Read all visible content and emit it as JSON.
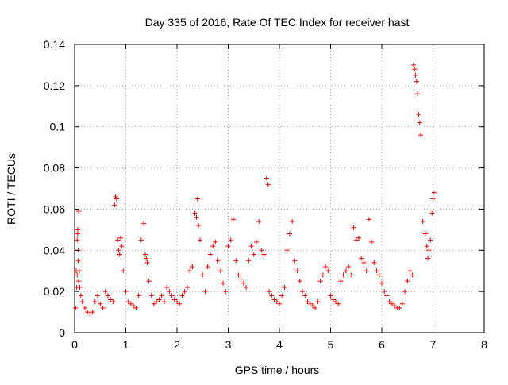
{
  "chart_data": {
    "type": "scatter",
    "title": "Day 335 of 2016, Rate Of TEC Index for receiver hast",
    "xlabel": "GPS time / hours",
    "ylabel": "ROTI / TECUs",
    "xlim": [
      0,
      8
    ],
    "ylim": [
      0,
      0.14
    ],
    "xticks": [
      0,
      1,
      2,
      3,
      4,
      5,
      6,
      7,
      8
    ],
    "yticks": [
      0,
      0.02,
      0.04,
      0.06,
      0.08,
      0.1,
      0.12,
      0.14
    ],
    "xtick_labels": [
      "0",
      "1",
      "2",
      "3",
      "4",
      "5",
      "6",
      "7",
      "8"
    ],
    "ytick_labels": [
      "0",
      "0.02",
      "0.04",
      "0.06",
      "0.08",
      "0.1",
      "0.12",
      "0.14"
    ],
    "grid": true,
    "marker": "plus",
    "color": "#ff0000",
    "series": [
      {
        "name": "ROTI",
        "x": [
          0.02,
          0.03,
          0.05,
          0.06,
          0.07,
          0.08,
          0.09,
          0.1,
          0.12,
          0.15,
          0.2,
          0.25,
          0.3,
          0.06,
          0.07,
          0.08,
          0.05,
          0.04,
          0.35,
          0.4,
          0.45,
          0.5,
          0.55,
          0.6,
          0.65,
          0.7,
          0.75,
          0.78,
          0.8,
          0.82,
          0.84,
          0.86,
          0.88,
          0.9,
          0.92,
          0.95,
          1.0,
          1.05,
          1.1,
          1.15,
          1.2,
          1.25,
          1.3,
          1.35,
          1.38,
          1.4,
          1.42,
          1.45,
          1.5,
          1.55,
          1.6,
          1.65,
          1.7,
          1.75,
          1.8,
          1.85,
          1.9,
          1.95,
          2.0,
          2.05,
          2.1,
          2.15,
          2.2,
          2.25,
          2.3,
          2.35,
          2.38,
          2.4,
          2.42,
          2.45,
          2.5,
          2.55,
          2.6,
          2.65,
          2.7,
          2.75,
          2.8,
          2.85,
          2.9,
          2.95,
          3.0,
          3.05,
          3.1,
          3.15,
          3.2,
          3.25,
          3.3,
          3.35,
          3.4,
          3.45,
          3.5,
          3.55,
          3.6,
          3.65,
          3.7,
          3.75,
          3.78,
          3.8,
          3.85,
          3.9,
          3.95,
          4.0,
          4.05,
          4.1,
          4.15,
          4.2,
          4.25,
          4.3,
          4.35,
          4.4,
          4.45,
          4.5,
          4.55,
          4.6,
          4.65,
          4.7,
          4.75,
          4.8,
          4.85,
          4.9,
          4.95,
          5.0,
          5.05,
          5.1,
          5.15,
          5.2,
          5.25,
          5.3,
          5.35,
          5.4,
          5.45,
          5.5,
          5.55,
          5.6,
          5.65,
          5.7,
          5.75,
          5.8,
          5.85,
          5.9,
          5.95,
          6.0,
          6.05,
          6.1,
          6.15,
          6.2,
          6.25,
          6.3,
          6.35,
          6.4,
          6.45,
          6.5,
          6.55,
          6.6,
          6.62,
          6.64,
          6.66,
          6.68,
          6.7,
          6.72,
          6.74,
          6.76,
          6.8,
          6.85,
          6.88,
          6.9,
          6.92,
          6.95,
          6.98,
          7.0,
          7.02
        ],
        "y": [
          0.012,
          0.03,
          0.045,
          0.05,
          0.04,
          0.059,
          0.03,
          0.022,
          0.018,
          0.015,
          0.012,
          0.01,
          0.009,
          0.048,
          0.035,
          0.025,
          0.028,
          0.022,
          0.01,
          0.015,
          0.018,
          0.014,
          0.012,
          0.02,
          0.018,
          0.016,
          0.015,
          0.062,
          0.066,
          0.065,
          0.045,
          0.04,
          0.038,
          0.046,
          0.042,
          0.03,
          0.02,
          0.015,
          0.014,
          0.013,
          0.012,
          0.018,
          0.045,
          0.053,
          0.038,
          0.036,
          0.034,
          0.025,
          0.018,
          0.014,
          0.015,
          0.016,
          0.018,
          0.015,
          0.022,
          0.02,
          0.018,
          0.016,
          0.015,
          0.014,
          0.018,
          0.02,
          0.022,
          0.03,
          0.032,
          0.058,
          0.056,
          0.065,
          0.052,
          0.045,
          0.028,
          0.02,
          0.032,
          0.038,
          0.042,
          0.044,
          0.035,
          0.03,
          0.024,
          0.02,
          0.042,
          0.045,
          0.055,
          0.035,
          0.028,
          0.026,
          0.024,
          0.022,
          0.035,
          0.042,
          0.038,
          0.044,
          0.054,
          0.04,
          0.038,
          0.075,
          0.072,
          0.02,
          0.018,
          0.016,
          0.015,
          0.014,
          0.018,
          0.022,
          0.04,
          0.048,
          0.054,
          0.035,
          0.03,
          0.025,
          0.02,
          0.018,
          0.015,
          0.014,
          0.013,
          0.012,
          0.015,
          0.025,
          0.028,
          0.032,
          0.03,
          0.018,
          0.016,
          0.015,
          0.014,
          0.025,
          0.028,
          0.03,
          0.032,
          0.028,
          0.051,
          0.045,
          0.046,
          0.036,
          0.034,
          0.03,
          0.055,
          0.044,
          0.034,
          0.03,
          0.028,
          0.024,
          0.02,
          0.018,
          0.015,
          0.014,
          0.013,
          0.012,
          0.012,
          0.014,
          0.02,
          0.025,
          0.03,
          0.028,
          0.13,
          0.128,
          0.125,
          0.122,
          0.116,
          0.106,
          0.102,
          0.096,
          0.054,
          0.048,
          0.042,
          0.036,
          0.04,
          0.045,
          0.058,
          0.065,
          0.068
        ]
      }
    ]
  }
}
